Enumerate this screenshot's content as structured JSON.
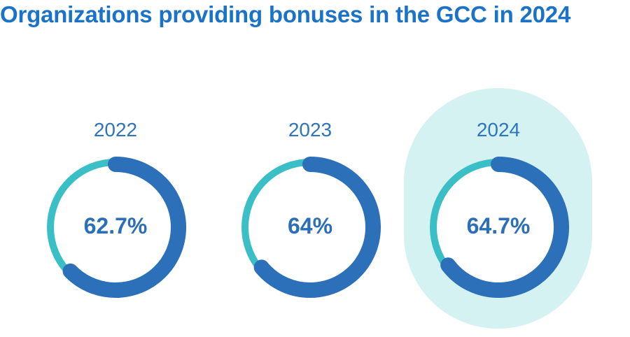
{
  "title": "Organizations providing bonuses in the GCC in 2024",
  "colors": {
    "title": "#1a73c9",
    "arc_primary": "#2b70b8",
    "arc_remainder": "#3bbfc6",
    "highlight_bg": "#d5f2f2",
    "value_text": "#2a6fb8"
  },
  "donuts": [
    {
      "year": "2022",
      "label": "62.7%",
      "value": 62.7,
      "highlighted": false
    },
    {
      "year": "2023",
      "label": "64%",
      "value": 64,
      "highlighted": false
    },
    {
      "year": "2024",
      "label": "64.7%",
      "value": 64.7,
      "highlighted": true
    }
  ],
  "chart_data": {
    "type": "pie",
    "subtype": "donut",
    "title": "Organizations providing bonuses in the GCC in 2024",
    "categories": [
      "2022",
      "2023",
      "2024"
    ],
    "values": [
      62.7,
      64,
      64.7
    ],
    "unit": "%",
    "highlighted_category": "2024",
    "xlabel": "",
    "ylabel": ""
  }
}
